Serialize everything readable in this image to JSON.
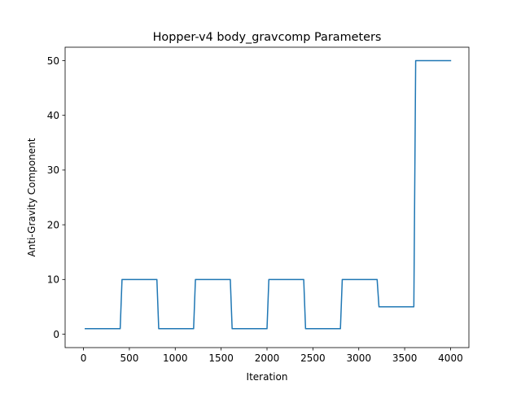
{
  "chart_data": {
    "type": "line",
    "title": "Hopper-v4 body_gravcomp Parameters",
    "xlabel": "Iteration",
    "ylabel": "Anti-Gravity Component",
    "xlim": [
      -200,
      4200
    ],
    "ylim": [
      -2.45,
      52.45
    ],
    "xticks": [
      0,
      500,
      1000,
      1500,
      2000,
      2500,
      3000,
      3500,
      4000
    ],
    "yticks": [
      0,
      10,
      20,
      30,
      40,
      50
    ],
    "grid": false,
    "legend": "none",
    "series": [
      {
        "color": "#1f77b4",
        "x": [
          20,
          400,
          420,
          800,
          820,
          1200,
          1220,
          1600,
          1620,
          2000,
          2020,
          2400,
          2420,
          2800,
          2820,
          3200,
          3220,
          3600,
          3620,
          4000
        ],
        "y": [
          1,
          1,
          10,
          10,
          1,
          1,
          10,
          10,
          1,
          1,
          10,
          10,
          1,
          1,
          10,
          10,
          5,
          5,
          50,
          50
        ]
      }
    ]
  }
}
